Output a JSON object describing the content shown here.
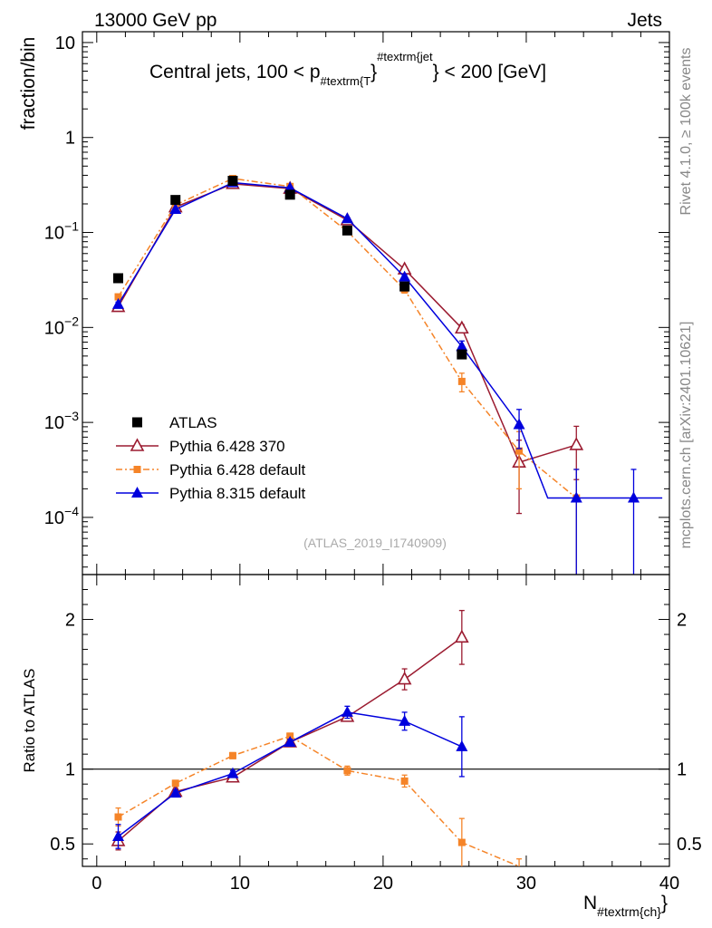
{
  "header": {
    "energy": "13000 GeV pp",
    "category": "Jets"
  },
  "side_labels": {
    "rivet": "Rivet 4.1.0, ≥ 100k events",
    "source": "mcplots.cern.ch [arXiv:2401.10621]"
  },
  "watermark": "(ATLAS_2019_I1740909)",
  "chart_data": [
    {
      "type": "scatter",
      "role": "main",
      "title": {
        "prefix": "Central jets, 100 < p",
        "sub": "#textrm{T",
        "mid": "}",
        "sup": "#textrm{jet",
        "suffix": "} < 200 [GeV]"
      },
      "ylabel": "fraction/bin",
      "yscale": "log",
      "ylim": [
        2.5e-05,
        13
      ],
      "xlim": [
        -1,
        40
      ],
      "yticks": [
        {
          "value": 10,
          "base": "10",
          "exp": ""
        },
        {
          "value": 1,
          "base": "1",
          "exp": ""
        },
        {
          "value": 0.1,
          "base": "10",
          "exp": "−1"
        },
        {
          "value": 0.01,
          "base": "10",
          "exp": "−2"
        },
        {
          "value": 0.001,
          "base": "10",
          "exp": "−3"
        },
        {
          "value": 0.0001,
          "base": "10",
          "exp": "−4"
        }
      ],
      "legend_position": "middle-left",
      "series": [
        {
          "name": "ATLAS",
          "color": "#000000",
          "marker": "filled-square",
          "line": "none",
          "x": [
            1.5,
            5.5,
            9.5,
            13.5,
            17.5,
            21.5,
            25.5
          ],
          "y": [
            0.033,
            0.22,
            0.35,
            0.25,
            0.105,
            0.027,
            0.0052
          ],
          "err": [
            0.002,
            0.01,
            0.01,
            0.01,
            0.005,
            0.002,
            0.0005
          ]
        },
        {
          "name": "Pythia 6.428 370",
          "color": "#9b1b30",
          "marker": "open-triangle",
          "line": "solid",
          "x": [
            1.5,
            5.5,
            9.5,
            13.5,
            17.5,
            21.5,
            25.5,
            29.5,
            33.5
          ],
          "y": [
            0.0165,
            0.185,
            0.325,
            0.29,
            0.135,
            0.041,
            0.0098,
            0.00038,
            0.00058
          ],
          "err": [
            0.001,
            0.005,
            0.008,
            0.007,
            0.004,
            0.002,
            0.0009,
            0.00027,
            0.00033
          ]
        },
        {
          "name": "Pythia 6.428 default",
          "color": "#f58428",
          "marker": "small-square",
          "line": "dashdot",
          "x": [
            1.5,
            5.5,
            9.5,
            13.5,
            17.5,
            21.5,
            25.5,
            29.5,
            33.5
          ],
          "y": [
            0.021,
            0.195,
            0.37,
            0.305,
            0.103,
            0.025,
            0.0027,
            0.0005,
            0.00016
          ],
          "err": [
            0.001,
            0.005,
            0.008,
            0.007,
            0.004,
            0.002,
            0.0006,
            0.0003,
            0.00016
          ]
        },
        {
          "name": "Pythia 8.315 default",
          "color": "#0000dd",
          "marker": "filled-triangle",
          "line": "solid",
          "x": [
            1.5,
            5.5,
            9.5,
            13.5,
            17.5,
            21.5,
            25.5,
            29.5,
            33.5,
            37.5
          ],
          "y": [
            0.0175,
            0.175,
            0.335,
            0.295,
            0.14,
            0.034,
            0.0063,
            0.00095,
            0.00016,
            0.00016
          ],
          "err": [
            0.001,
            0.005,
            0.008,
            0.007,
            0.004,
            0.002,
            0.0009,
            0.00042,
            0.00016,
            0.00016
          ],
          "xhalfwidth": [
            0,
            0,
            0,
            0,
            0,
            0,
            0,
            0,
            2,
            2
          ]
        }
      ]
    },
    {
      "type": "line",
      "role": "ratio",
      "ylabel": "Ratio to ATLAS",
      "xlabel_base": "N",
      "xlabel_sub": "#textrm{ch}",
      "xlim": [
        -1,
        40
      ],
      "ylim": [
        0.35,
        2.3
      ],
      "xticks": [
        0,
        10,
        20,
        30,
        40
      ],
      "yticks": [
        0.5,
        1,
        2
      ],
      "reference_line": 1,
      "series": [
        {
          "name": "Pythia 6.428 370",
          "color": "#9b1b30",
          "marker": "open-triangle",
          "line": "solid",
          "x": [
            1.5,
            5.5,
            9.5,
            13.5,
            17.5,
            21.5,
            25.5
          ],
          "y": [
            0.52,
            0.85,
            0.945,
            1.18,
            1.35,
            1.6,
            1.88
          ],
          "err": [
            0.06,
            0.02,
            0.02,
            0.02,
            0.03,
            0.07,
            0.18
          ]
        },
        {
          "name": "Pythia 6.428 default",
          "color": "#f58428",
          "marker": "small-square",
          "line": "dashdot",
          "x": [
            1.5,
            5.5,
            9.5,
            13.5,
            17.5,
            21.5,
            25.5,
            29.5
          ],
          "y": [
            0.68,
            0.905,
            1.09,
            1.22,
            0.99,
            0.92,
            0.51,
            0.3
          ],
          "err": [
            0.06,
            0.02,
            0.02,
            0.02,
            0.03,
            0.04,
            0.16,
            0.1
          ]
        },
        {
          "name": "Pythia 8.315 default",
          "color": "#0000dd",
          "marker": "filled-triangle",
          "line": "solid",
          "x": [
            1.5,
            5.5,
            9.5,
            13.5,
            17.5,
            21.5,
            25.5
          ],
          "y": [
            0.55,
            0.84,
            0.97,
            1.18,
            1.38,
            1.32,
            1.15
          ],
          "err": [
            0.08,
            0.02,
            0.02,
            0.02,
            0.04,
            0.06,
            0.2
          ]
        }
      ]
    }
  ]
}
